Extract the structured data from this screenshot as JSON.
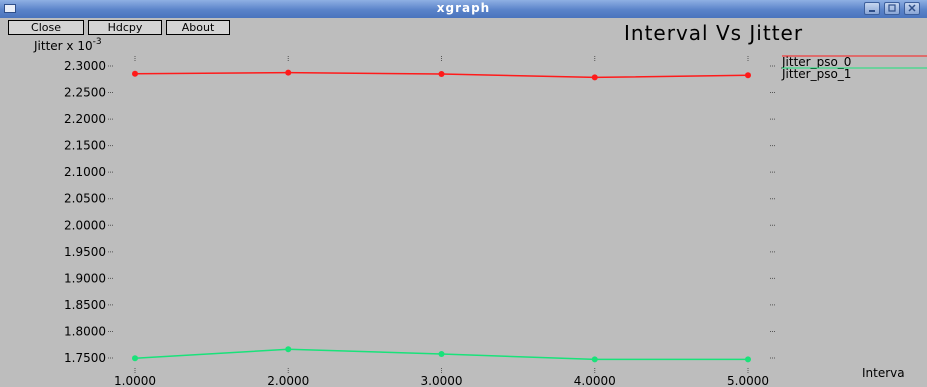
{
  "window": {
    "title": "xgraph",
    "buttons": {
      "close": "Close",
      "hdcpy": "Hdcpy",
      "about": "About"
    }
  },
  "chart_data": {
    "type": "line",
    "title": "Interval Vs Jitter",
    "ylabel": "Jitter x 10",
    "ylabel_exponent": "-3",
    "xlabel": "Interva",
    "x": [
      1,
      2,
      3,
      4,
      5
    ],
    "x_tick_labels": [
      "1.0000",
      "2.0000",
      "3.0000",
      "4.0000",
      "5.0000"
    ],
    "y_tick_labels": [
      "2.3000",
      "2.2500",
      "2.2000",
      "2.1500",
      "2.1000",
      "2.0500",
      "2.0000",
      "1.9500",
      "1.9000",
      "1.8500",
      "1.8000",
      "1.7500"
    ],
    "y_ticks": [
      2.3,
      2.25,
      2.2,
      2.15,
      2.1,
      2.05,
      2.0,
      1.95,
      1.9,
      1.85,
      1.8,
      1.75
    ],
    "xlim": [
      1,
      5
    ],
    "ylim": [
      1.75,
      2.3
    ],
    "grid": false,
    "legend_position": "right",
    "series": [
      {
        "name": "Jitter_pso_0",
        "color": "#ff1a1a",
        "values": [
          2.2855,
          2.2875,
          2.285,
          2.2785,
          2.2825
        ]
      },
      {
        "name": "Jitter_pso_1",
        "color": "#19e27a",
        "values": [
          1.7495,
          1.7665,
          1.7575,
          1.7475,
          1.7475
        ]
      }
    ]
  }
}
